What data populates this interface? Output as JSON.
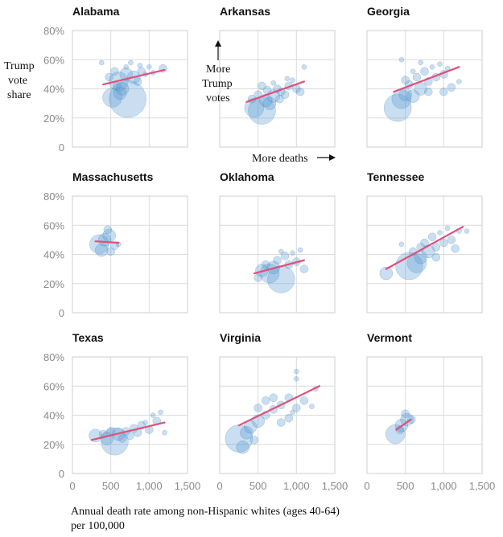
{
  "chart_data": {
    "type": "scatter",
    "xlabel_line1": "Annual death rate among non-Hispanic whites (ages 40-64)",
    "xlabel_line2": "per 100,000",
    "ylabel": [
      "Trump",
      "vote",
      "share"
    ],
    "annotation_y": [
      "More",
      "Trump",
      "votes"
    ],
    "annotation_x": "More deaths",
    "xlim": [
      0,
      1500
    ],
    "ylim": [
      0,
      80
    ],
    "x_ticks": [
      0,
      500,
      1000,
      1500
    ],
    "x_tick_labels": [
      "0",
      "500",
      "1,000",
      "1,500"
    ],
    "y_ticks": [
      0,
      20,
      40,
      60,
      80
    ],
    "y_tick_labels": [
      "0",
      "20%",
      "40%",
      "60%",
      "80%"
    ],
    "panels": [
      {
        "state": "Alabama",
        "trend": [
          [
            400,
            43
          ],
          [
            1200,
            53
          ]
        ],
        "points": [
          [
            520,
            34,
            4
          ],
          [
            720,
            33,
            6
          ],
          [
            600,
            45,
            4
          ],
          [
            700,
            50,
            3
          ],
          [
            800,
            48,
            3
          ],
          [
            1180,
            54,
            2
          ],
          [
            650,
            40,
            3
          ],
          [
            900,
            52,
            2
          ],
          [
            380,
            58,
            1
          ],
          [
            550,
            52,
            2
          ],
          [
            760,
            58,
            1
          ],
          [
            1000,
            55,
            1
          ],
          [
            620,
            37,
            3
          ],
          [
            850,
            45,
            2
          ],
          [
            480,
            48,
            2
          ],
          [
            950,
            50,
            1
          ],
          [
            700,
            55,
            1
          ],
          [
            580,
            42,
            2
          ],
          [
            880,
            56,
            1
          ],
          [
            1050,
            51,
            1
          ]
        ]
      },
      {
        "state": "Arkansas",
        "trend": [
          [
            350,
            31
          ],
          [
            1100,
            45
          ]
        ],
        "points": [
          [
            550,
            25,
            5
          ],
          [
            450,
            27,
            4
          ],
          [
            600,
            32,
            3
          ],
          [
            700,
            35,
            3
          ],
          [
            800,
            38,
            2
          ],
          [
            650,
            30,
            3
          ],
          [
            900,
            42,
            2
          ],
          [
            750,
            40,
            2
          ],
          [
            850,
            36,
            2
          ],
          [
            1000,
            40,
            2
          ],
          [
            1100,
            55,
            1
          ],
          [
            550,
            42,
            2
          ],
          [
            700,
            44,
            1
          ],
          [
            950,
            46,
            1
          ],
          [
            500,
            36,
            2
          ],
          [
            1050,
            38,
            2
          ],
          [
            620,
            39,
            2
          ],
          [
            780,
            33,
            2
          ],
          [
            880,
            47,
            1
          ],
          [
            420,
            33,
            2
          ]
        ]
      },
      {
        "state": "Georgia",
        "trend": [
          [
            350,
            38
          ],
          [
            1200,
            55
          ]
        ],
        "points": [
          [
            400,
            27,
            5
          ],
          [
            450,
            33,
            4
          ],
          [
            500,
            36,
            3
          ],
          [
            600,
            35,
            3
          ],
          [
            700,
            40,
            3
          ],
          [
            800,
            45,
            2
          ],
          [
            900,
            48,
            2
          ],
          [
            1000,
            50,
            2
          ],
          [
            1100,
            41,
            2
          ],
          [
            650,
            48,
            2
          ],
          [
            750,
            52,
            2
          ],
          [
            850,
            55,
            1
          ],
          [
            950,
            57,
            1
          ],
          [
            1050,
            54,
            1
          ],
          [
            550,
            43,
            2
          ],
          [
            700,
            58,
            1
          ],
          [
            450,
            60,
            1
          ],
          [
            800,
            38,
            2
          ],
          [
            1200,
            45,
            1
          ],
          [
            1000,
            38,
            2
          ],
          [
            600,
            52,
            1
          ],
          [
            500,
            46,
            2
          ]
        ]
      },
      {
        "state": "Massachusetts",
        "trend": [
          [
            300,
            49
          ],
          [
            600,
            48
          ]
        ],
        "points": [
          [
            350,
            47,
            4
          ],
          [
            420,
            50,
            3
          ],
          [
            480,
            53,
            3
          ],
          [
            380,
            43,
            3
          ],
          [
            550,
            46,
            2
          ],
          [
            460,
            57,
            2
          ],
          [
            500,
            42,
            2
          ],
          [
            600,
            47,
            1
          ]
        ]
      },
      {
        "state": "Oklahoma",
        "trend": [
          [
            450,
            27
          ],
          [
            1100,
            36
          ]
        ],
        "points": [
          [
            800,
            23,
            5
          ],
          [
            650,
            27,
            4
          ],
          [
            550,
            29,
            3
          ],
          [
            700,
            31,
            3
          ],
          [
            900,
            33,
            2
          ],
          [
            1000,
            35,
            2
          ],
          [
            750,
            36,
            2
          ],
          [
            850,
            39,
            2
          ],
          [
            600,
            33,
            2
          ],
          [
            1100,
            30,
            2
          ],
          [
            950,
            41,
            1
          ],
          [
            500,
            24,
            2
          ],
          [
            1050,
            43,
            1
          ],
          [
            800,
            42,
            1
          ]
        ]
      },
      {
        "state": "Tennessee",
        "trend": [
          [
            250,
            30
          ],
          [
            1250,
            59
          ]
        ],
        "points": [
          [
            250,
            27,
            3
          ],
          [
            550,
            32,
            5
          ],
          [
            650,
            34,
            4
          ],
          [
            700,
            38,
            3
          ],
          [
            800,
            42,
            3
          ],
          [
            900,
            45,
            2
          ],
          [
            1000,
            48,
            2
          ],
          [
            1100,
            50,
            2
          ],
          [
            1200,
            56,
            1
          ],
          [
            750,
            48,
            2
          ],
          [
            850,
            52,
            2
          ],
          [
            950,
            55,
            1
          ],
          [
            600,
            42,
            2
          ],
          [
            1050,
            58,
            1
          ],
          [
            1300,
            56,
            1
          ],
          [
            450,
            47,
            1
          ],
          [
            1150,
            44,
            2
          ],
          [
            900,
            38,
            2
          ],
          [
            700,
            45,
            2
          ]
        ]
      },
      {
        "state": "Texas",
        "trend": [
          [
            250,
            23
          ],
          [
            1200,
            35
          ]
        ],
        "points": [
          [
            550,
            22,
            5
          ],
          [
            300,
            26,
            3
          ],
          [
            450,
            24,
            3
          ],
          [
            600,
            27,
            3
          ],
          [
            700,
            29,
            2
          ],
          [
            800,
            31,
            2
          ],
          [
            900,
            33,
            2
          ],
          [
            1000,
            30,
            2
          ],
          [
            1100,
            36,
            2
          ],
          [
            650,
            24,
            2
          ],
          [
            750,
            26,
            2
          ],
          [
            850,
            28,
            2
          ],
          [
            950,
            35,
            1
          ],
          [
            1050,
            40,
            1
          ],
          [
            1150,
            42,
            1
          ],
          [
            500,
            29,
            2
          ],
          [
            1200,
            28,
            1
          ],
          [
            400,
            27,
            2
          ]
        ]
      },
      {
        "state": "Virginia",
        "trend": [
          [
            250,
            33
          ],
          [
            1300,
            60
          ]
        ],
        "points": [
          [
            250,
            24,
            5
          ],
          [
            300,
            18,
            3
          ],
          [
            350,
            28,
            3
          ],
          [
            400,
            32,
            3
          ],
          [
            500,
            36,
            3
          ],
          [
            600,
            40,
            2
          ],
          [
            700,
            44,
            2
          ],
          [
            800,
            47,
            2
          ],
          [
            900,
            52,
            2
          ],
          [
            1000,
            65,
            1
          ],
          [
            1100,
            50,
            2
          ],
          [
            1200,
            46,
            1
          ],
          [
            700,
            52,
            2
          ],
          [
            600,
            50,
            2
          ],
          [
            500,
            45,
            2
          ],
          [
            800,
            35,
            2
          ],
          [
            900,
            38,
            2
          ],
          [
            1000,
            45,
            2
          ],
          [
            1250,
            58,
            1
          ],
          [
            450,
            23,
            2
          ],
          [
            1000,
            70,
            1
          ],
          [
            950,
            42,
            1
          ]
        ]
      },
      {
        "state": "Vermont",
        "trend": [
          [
            380,
            30
          ],
          [
            570,
            37
          ]
        ],
        "points": [
          [
            370,
            27,
            4
          ],
          [
            450,
            33,
            3
          ],
          [
            520,
            37,
            3
          ],
          [
            580,
            37,
            2
          ],
          [
            500,
            41,
            2
          ],
          [
            430,
            30,
            2
          ]
        ]
      }
    ]
  }
}
